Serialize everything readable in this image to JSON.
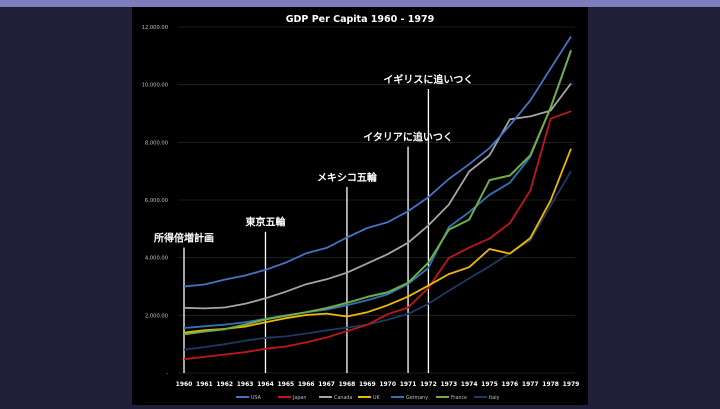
{
  "chart_data": {
    "type": "line",
    "title": "GDP Per Capita 1960 - 1979",
    "xlabel": "",
    "ylabel": "",
    "ylim": [
      0,
      12000
    ],
    "yticks": [
      "-",
      "2,000.00",
      "4,000.00",
      "6,000.00",
      "8,000.00",
      "10,000.00",
      "12,000.00"
    ],
    "grid": true,
    "legend": "bottom",
    "categories": [
      "1960",
      "1961",
      "1962",
      "1963",
      "1964",
      "1965",
      "1966",
      "1967",
      "1968",
      "1969",
      "1970",
      "1971",
      "1972",
      "1973",
      "1974",
      "1975",
      "1976",
      "1977",
      "1978",
      "1979"
    ],
    "series": [
      {
        "name": "USA",
        "color": "#4472c4",
        "values": [
          3000,
          3070,
          3240,
          3380,
          3580,
          3830,
          4150,
          4340,
          4700,
          5030,
          5230,
          5610,
          6100,
          6730,
          7240,
          7800,
          8590,
          9450,
          10560,
          11670
        ]
      },
      {
        "name": "Japan",
        "color": "#c0161c",
        "values": [
          480,
          560,
          640,
          720,
          840,
          920,
          1060,
          1230,
          1450,
          1670,
          2040,
          2270,
          2950,
          3990,
          4350,
          4660,
          5200,
          6330,
          8820,
          9080
        ]
      },
      {
        "name": "Canada",
        "color": "#a5a5a5",
        "values": [
          2260,
          2240,
          2270,
          2400,
          2590,
          2820,
          3080,
          3250,
          3480,
          3800,
          4120,
          4520,
          5120,
          5840,
          6990,
          7550,
          8800,
          8900,
          9100,
          10040
        ]
      },
      {
        "name": "UK",
        "color": "#f0b800",
        "values": [
          1400,
          1480,
          1530,
          1610,
          1760,
          1900,
          2010,
          2060,
          1960,
          2110,
          2350,
          2650,
          3030,
          3430,
          3670,
          4300,
          4140,
          4680,
          5980,
          7780
        ]
      },
      {
        "name": "Germany",
        "color": "#2e75b6",
        "values": null
      },
      {
        "name": "France",
        "color": "#70ad47",
        "values": [
          1340,
          1440,
          1520,
          1680,
          1860,
          1980,
          2110,
          2250,
          2430,
          2640,
          2800,
          3130,
          3830,
          4970,
          5320,
          6690,
          6850,
          7550,
          9200,
          11180
        ]
      },
      {
        "name": "Italy",
        "color": "#1f3864",
        "values": [
          810,
          900,
          1000,
          1120,
          1220,
          1270,
          1370,
          1480,
          1570,
          1680,
          1850,
          2050,
          2400,
          2850,
          3280,
          3700,
          4150,
          4600,
          5800,
          7000
        ]
      }
    ],
    "germany_values": [
      1560,
      1620,
      1680,
      1760,
      1880,
      2000,
      2100,
      2200,
      2350,
      2520,
      2730,
      3090,
      3640,
      5060,
      5580,
      6180,
      6600,
      7500,
      9200,
      11200
    ],
    "annotations": [
      {
        "label": "所得倍増計画",
        "year": "1960",
        "top_value": 4350
      },
      {
        "label": "東京五輪",
        "year": "1964",
        "top_value": 4900
      },
      {
        "label": "メキシコ五輪",
        "year": "1968",
        "top_value": 6450
      },
      {
        "label": "イタリアに追いつく",
        "year": "1971",
        "top_value": 7850
      },
      {
        "label": "イギリスに追いつく",
        "year": "1972",
        "top_value": 9850
      }
    ]
  }
}
